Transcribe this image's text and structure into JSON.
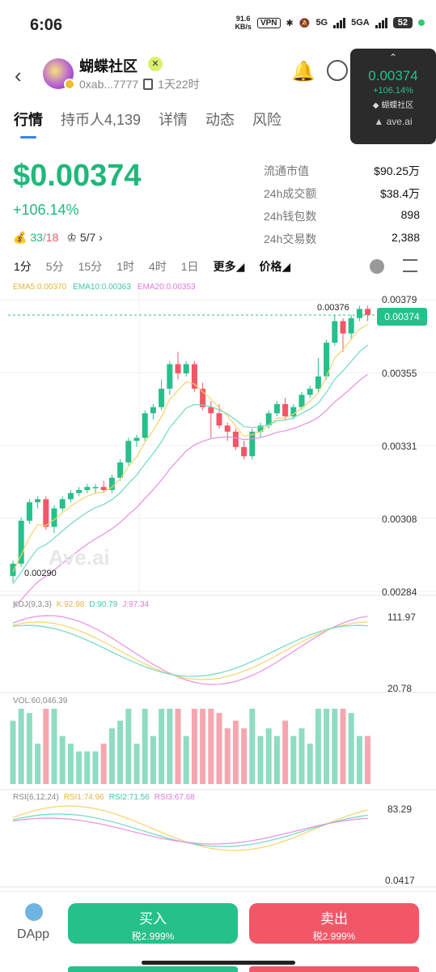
{
  "status_bar": {
    "time": "6:06",
    "net_speed_value": "91.6",
    "net_speed_unit": "KB/s",
    "vpn": "VPN",
    "sim1": "5G",
    "sim2": "5GA",
    "battery": "52"
  },
  "header": {
    "token_name": "蝴蝶社区",
    "address": "0xab...7777",
    "age": "1天22时"
  },
  "float_widget": {
    "price": "0.00374",
    "change": "+106.14%",
    "name": "蝴蝶社区",
    "source": "ave.ai"
  },
  "tabs": [
    {
      "label": "行情",
      "active": true
    },
    {
      "label": "持币人4,139",
      "active": false
    },
    {
      "label": "详情",
      "active": false
    },
    {
      "label": "动态",
      "active": false
    },
    {
      "label": "风险",
      "active": false
    }
  ],
  "price_block": {
    "price": "$0.00374",
    "change": "+106.14%",
    "buys": "33",
    "sells": "18",
    "rank": "5/7"
  },
  "stats": [
    {
      "label": "流通市值",
      "value": "$90.25万"
    },
    {
      "label": "24h成交额",
      "value": "$38.4万"
    },
    {
      "label": "24h钱包数",
      "value": "898"
    },
    {
      "label": "24h交易数",
      "value": "2,388"
    }
  ],
  "intervals": [
    "1分",
    "5分",
    "15分",
    "1时",
    "4时",
    "1日"
  ],
  "more_label": "更多",
  "price_label": "价格",
  "colors": {
    "up": "#26c08a",
    "down": "#f25767",
    "ema5": "#f5d36a",
    "ema10": "#6fd9c2",
    "ema20": "#e98ee3"
  },
  "chart_data": [
    {
      "type": "candlestick",
      "legend": [
        "EMA5:0.00370",
        "EMA10:0.00363",
        "EMA20:0.00353"
      ],
      "y_ticks": [
        "0.00379",
        "0.00355",
        "0.00331",
        "0.00308",
        "0.00284"
      ],
      "ylim": [
        0.00284,
        0.00379
      ],
      "current_price": "0.00374",
      "high_mark": "0.00376",
      "low_mark": "0.00290",
      "candles": [
        [
          0.00289,
          0.00293,
          0.00287,
          0.00294
        ],
        [
          0.00293,
          0.00307,
          0.00292,
          0.00308
        ],
        [
          0.00307,
          0.00313,
          0.00306,
          0.00314
        ],
        [
          0.00313,
          0.00314,
          0.00311,
          0.00315
        ],
        [
          0.00314,
          0.00305,
          0.00304,
          0.00315
        ],
        [
          0.00305,
          0.00311,
          0.00303,
          0.00312
        ],
        [
          0.00311,
          0.00314,
          0.0031,
          0.00315
        ],
        [
          0.00314,
          0.00316,
          0.00313,
          0.00317
        ],
        [
          0.00316,
          0.00317,
          0.00315,
          0.00318
        ],
        [
          0.00317,
          0.00318,
          0.00316,
          0.00319
        ],
        [
          0.00318,
          0.00318,
          0.00316,
          0.00319
        ],
        [
          0.00318,
          0.00317,
          0.00316,
          0.0032
        ],
        [
          0.00317,
          0.00321,
          0.00316,
          0.00322
        ],
        [
          0.00321,
          0.00326,
          0.0032,
          0.00327
        ],
        [
          0.00326,
          0.00333,
          0.00325,
          0.00334
        ],
        [
          0.00333,
          0.00334,
          0.00331,
          0.00335
        ],
        [
          0.00334,
          0.00342,
          0.00333,
          0.00343
        ],
        [
          0.00342,
          0.00344,
          0.0034,
          0.00345
        ],
        [
          0.00344,
          0.0035,
          0.00343,
          0.00353
        ],
        [
          0.0035,
          0.00358,
          0.00348,
          0.00359
        ],
        [
          0.00358,
          0.00355,
          0.00353,
          0.00362
        ],
        [
          0.00355,
          0.00358,
          0.00354,
          0.00359
        ],
        [
          0.00358,
          0.0035,
          0.00349,
          0.00359
        ],
        [
          0.0035,
          0.00344,
          0.00343,
          0.00352
        ],
        [
          0.00344,
          0.00342,
          0.00334,
          0.00346
        ],
        [
          0.00342,
          0.00338,
          0.00337,
          0.00345
        ],
        [
          0.00338,
          0.00336,
          0.00333,
          0.00339
        ],
        [
          0.00336,
          0.00331,
          0.0033,
          0.00337
        ],
        [
          0.00331,
          0.00328,
          0.00327,
          0.00333
        ],
        [
          0.00328,
          0.00336,
          0.00327,
          0.00337
        ],
        [
          0.00336,
          0.00338,
          0.00334,
          0.00339
        ],
        [
          0.00338,
          0.00342,
          0.00337,
          0.00343
        ],
        [
          0.00342,
          0.00345,
          0.00341,
          0.00346
        ],
        [
          0.00345,
          0.00341,
          0.0034,
          0.00347
        ],
        [
          0.00341,
          0.00344,
          0.0034,
          0.00345
        ],
        [
          0.00344,
          0.00348,
          0.00343,
          0.00349
        ],
        [
          0.00348,
          0.0035,
          0.00347,
          0.00351
        ],
        [
          0.0035,
          0.00354,
          0.00349,
          0.0036
        ],
        [
          0.00354,
          0.00365,
          0.00353,
          0.00366
        ],
        [
          0.00365,
          0.00372,
          0.00364,
          0.00374
        ],
        [
          0.00372,
          0.00368,
          0.00362,
          0.00373
        ],
        [
          0.00368,
          0.00373,
          0.00366,
          0.00374
        ],
        [
          0.00373,
          0.00376,
          0.00372,
          0.00377
        ],
        [
          0.00376,
          0.00374,
          0.00372,
          0.00377
        ]
      ]
    },
    {
      "type": "line",
      "legend": [
        "KDJ(9,3,3)",
        "K:92.98",
        "D:90.79",
        "J:97.34"
      ],
      "y_ticks": [
        "111.97",
        "20.78"
      ]
    },
    {
      "type": "bar",
      "legend": [
        "VOL:60,046.39"
      ]
    },
    {
      "type": "line",
      "legend": [
        "RSI(6,12,24)",
        "RSI1:74.96",
        "RSI2:71.56",
        "RSI3:67.68"
      ],
      "y_ticks": [
        "83.29",
        "0.0417"
      ]
    }
  ],
  "bottom": {
    "dapp": "DApp",
    "buy_label": "买入",
    "buy_tax": "税2.999%",
    "sell_label": "卖出",
    "sell_tax": "税2.999%"
  }
}
